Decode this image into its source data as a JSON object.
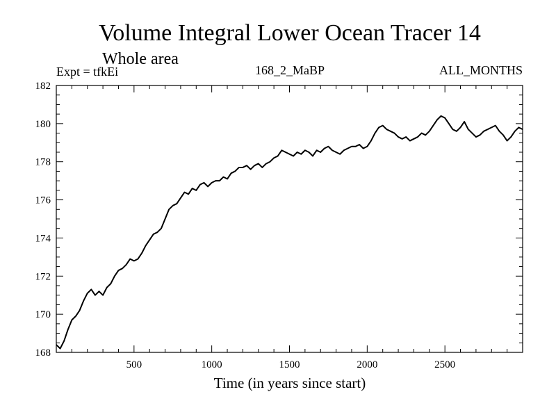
{
  "chart_data": {
    "type": "line",
    "title": "Volume Integral Lower Ocean Tracer 14",
    "subtitle": "Whole area",
    "experiment": "Expt = tfkEi",
    "period": "168_2_MaBP",
    "months": "ALL_MONTHS",
    "xlabel": "Time (in years since start)",
    "ylabel": "",
    "xlim": [
      0,
      3000
    ],
    "ylim": [
      168,
      182
    ],
    "x_ticks": [
      500,
      1000,
      1500,
      2000,
      2500
    ],
    "y_ticks": [
      168,
      170,
      172,
      174,
      176,
      178,
      180,
      182
    ],
    "grid": false,
    "legend": "none",
    "line_color": "#000000",
    "series": [
      {
        "x": [
          0,
          25,
          50,
          75,
          100,
          125,
          150,
          175,
          200,
          225,
          250,
          275,
          300,
          325,
          350,
          375,
          400,
          425,
          450,
          475,
          500,
          525,
          550,
          575,
          600,
          625,
          650,
          675,
          700,
          725,
          750,
          775,
          800,
          825,
          850,
          875,
          900,
          925,
          950,
          975,
          1000,
          1025,
          1050,
          1075,
          1100,
          1125,
          1150,
          1175,
          1200,
          1225,
          1250,
          1275,
          1300,
          1325,
          1350,
          1375,
          1400,
          1425,
          1450,
          1475,
          1500,
          1525,
          1550,
          1575,
          1600,
          1625,
          1650,
          1675,
          1700,
          1725,
          1750,
          1775,
          1800,
          1825,
          1850,
          1875,
          1900,
          1925,
          1950,
          1975,
          2000,
          2025,
          2050,
          2075,
          2100,
          2125,
          2150,
          2175,
          2200,
          2225,
          2250,
          2275,
          2300,
          2325,
          2350,
          2375,
          2400,
          2425,
          2450,
          2475,
          2500,
          2525,
          2550,
          2575,
          2600,
          2625,
          2650,
          2675,
          2700,
          2725,
          2750,
          2775,
          2800,
          2825,
          2850,
          2875,
          2900,
          2925,
          2950,
          2975,
          3000
        ],
        "values": [
          168.4,
          168.2,
          168.6,
          169.2,
          169.7,
          169.9,
          170.2,
          170.7,
          171.1,
          171.3,
          171.0,
          171.2,
          171.0,
          171.4,
          171.6,
          172.0,
          172.3,
          172.4,
          172.6,
          172.9,
          172.8,
          172.9,
          173.2,
          173.6,
          173.9,
          174.2,
          174.3,
          174.5,
          175.0,
          175.5,
          175.7,
          175.8,
          176.1,
          176.4,
          176.3,
          176.6,
          176.5,
          176.8,
          176.9,
          176.7,
          176.9,
          177.0,
          177.0,
          177.2,
          177.1,
          177.4,
          177.5,
          177.7,
          177.7,
          177.8,
          177.6,
          177.8,
          177.9,
          177.7,
          177.9,
          178.0,
          178.2,
          178.3,
          178.6,
          178.5,
          178.4,
          178.3,
          178.5,
          178.4,
          178.6,
          178.5,
          178.3,
          178.6,
          178.5,
          178.7,
          178.8,
          178.6,
          178.5,
          178.4,
          178.6,
          178.7,
          178.8,
          178.8,
          178.9,
          178.7,
          178.8,
          179.1,
          179.5,
          179.8,
          179.9,
          179.7,
          179.6,
          179.5,
          179.3,
          179.2,
          179.3,
          179.1,
          179.2,
          179.3,
          179.5,
          179.4,
          179.6,
          179.9,
          180.2,
          180.4,
          180.3,
          180.0,
          179.7,
          179.6,
          179.8,
          180.1,
          179.7,
          179.5,
          179.3,
          179.4,
          179.6,
          179.7,
          179.8,
          179.9,
          179.6,
          179.4,
          179.1,
          179.3,
          179.6,
          179.8,
          179.7
        ]
      }
    ]
  }
}
